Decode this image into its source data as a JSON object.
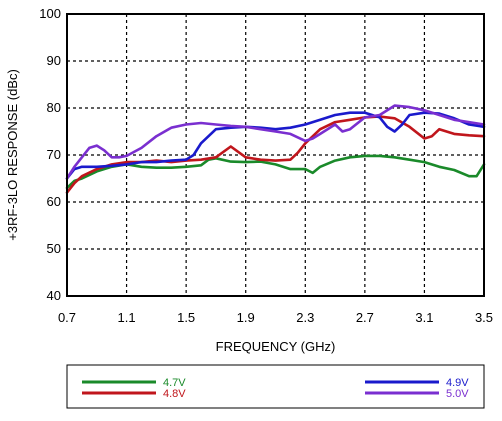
{
  "chart_data": {
    "type": "line",
    "xlabel": "FREQUENCY (GHz)",
    "ylabel": "+3RF-3LO RESPONSE (dBc)",
    "xlim": [
      0.7,
      3.5
    ],
    "ylim": [
      40,
      100
    ],
    "xticks": [
      0.7,
      1.1,
      1.5,
      1.9,
      2.3,
      2.7,
      3.1,
      3.5
    ],
    "xtick_labels": [
      "0.7",
      "1.1",
      "1.5",
      "1.9",
      "2.3",
      "2.7",
      "3.1",
      "3.5"
    ],
    "yticks": [
      40,
      50,
      60,
      70,
      80,
      90,
      100
    ],
    "ytick_labels": [
      "40",
      "50",
      "60",
      "70",
      "80",
      "90",
      "100"
    ],
    "grid": true,
    "legend_position": "bottom",
    "series": [
      {
        "name": "4.7V",
        "color": "#1a8a2a",
        "x": [
          0.7,
          0.75,
          0.8,
          0.9,
          1.0,
          1.1,
          1.2,
          1.3,
          1.4,
          1.5,
          1.6,
          1.65,
          1.7,
          1.8,
          1.9,
          2.0,
          2.1,
          2.2,
          2.3,
          2.35,
          2.4,
          2.5,
          2.6,
          2.7,
          2.8,
          2.9,
          3.0,
          3.1,
          3.2,
          3.3,
          3.4,
          3.45,
          3.5
        ],
        "y": [
          63.0,
          64.5,
          65.0,
          66.5,
          67.5,
          68.0,
          67.5,
          67.3,
          67.3,
          67.5,
          67.8,
          69.0,
          69.3,
          68.6,
          68.5,
          68.6,
          68.0,
          67.0,
          67.0,
          66.2,
          67.5,
          68.8,
          69.5,
          69.8,
          69.8,
          69.5,
          69.0,
          68.5,
          67.5,
          66.8,
          65.5,
          65.5,
          68.0
        ]
      },
      {
        "name": "4.8V",
        "color": "#c0161c",
        "x": [
          0.7,
          0.75,
          0.8,
          0.9,
          1.0,
          1.1,
          1.2,
          1.3,
          1.4,
          1.5,
          1.6,
          1.7,
          1.8,
          1.9,
          2.0,
          2.1,
          2.2,
          2.25,
          2.3,
          2.4,
          2.5,
          2.6,
          2.7,
          2.8,
          2.9,
          3.0,
          3.1,
          3.15,
          3.2,
          3.3,
          3.4,
          3.5
        ],
        "y": [
          62.0,
          64.0,
          65.5,
          67.0,
          68.0,
          68.5,
          68.5,
          68.8,
          68.5,
          68.8,
          69.0,
          69.5,
          71.8,
          69.5,
          69.0,
          68.8,
          69.0,
          70.5,
          72.5,
          75.5,
          77.0,
          77.5,
          78.0,
          78.2,
          77.8,
          76.0,
          73.5,
          74.0,
          75.5,
          74.5,
          74.2,
          74.0
        ]
      },
      {
        "name": "4.9V",
        "color": "#1a1acc",
        "x": [
          0.7,
          0.75,
          0.8,
          0.9,
          1.0,
          1.1,
          1.2,
          1.3,
          1.4,
          1.5,
          1.55,
          1.6,
          1.7,
          1.8,
          1.9,
          2.0,
          2.1,
          2.2,
          2.3,
          2.4,
          2.5,
          2.6,
          2.7,
          2.8,
          2.85,
          2.9,
          2.95,
          3.0,
          3.1,
          3.2,
          3.3,
          3.4,
          3.5
        ],
        "y": [
          65.0,
          67.0,
          67.5,
          67.5,
          67.7,
          68.0,
          68.5,
          68.5,
          68.8,
          69.0,
          70.0,
          72.5,
          75.5,
          75.8,
          76.0,
          75.8,
          75.5,
          75.8,
          76.5,
          77.5,
          78.5,
          79.0,
          79.0,
          78.0,
          76.0,
          75.0,
          76.5,
          78.5,
          79.0,
          78.8,
          77.8,
          76.5,
          76.0
        ]
      },
      {
        "name": "5.0V",
        "color": "#7a2fd0",
        "x": [
          0.7,
          0.75,
          0.8,
          0.85,
          0.9,
          0.95,
          1.0,
          1.05,
          1.1,
          1.2,
          1.3,
          1.4,
          1.5,
          1.6,
          1.7,
          1.8,
          1.9,
          2.0,
          2.1,
          2.2,
          2.3,
          2.35,
          2.4,
          2.5,
          2.55,
          2.6,
          2.7,
          2.8,
          2.9,
          3.0,
          3.1,
          3.2,
          3.3,
          3.4,
          3.5
        ],
        "y": [
          65.0,
          67.5,
          69.5,
          71.5,
          72.0,
          71.0,
          69.5,
          69.5,
          69.8,
          71.5,
          74.0,
          75.8,
          76.5,
          76.8,
          76.5,
          76.2,
          76.0,
          75.5,
          75.0,
          74.5,
          73.0,
          73.5,
          74.5,
          76.5,
          75.0,
          75.5,
          78.0,
          78.5,
          80.5,
          80.2,
          79.5,
          78.5,
          77.5,
          77.0,
          76.5
        ]
      }
    ]
  }
}
